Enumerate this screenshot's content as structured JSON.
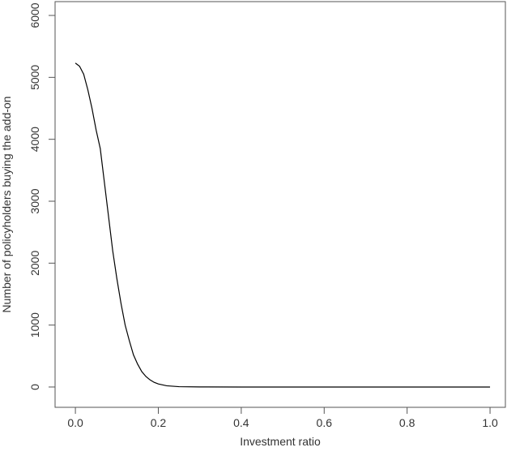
{
  "chart_data": {
    "type": "line",
    "x_label": "Investment ratio",
    "y_label": "Number of policyholders buying the add-on",
    "series": [
      {
        "color": "#000000",
        "x": [
          0.0,
          0.01,
          0.02,
          0.03,
          0.04,
          0.05,
          0.06,
          0.07,
          0.08,
          0.09,
          0.1,
          0.11,
          0.12,
          0.13,
          0.14,
          0.15,
          0.16,
          0.17,
          0.18,
          0.19,
          0.2,
          0.22,
          0.25,
          0.3,
          0.4,
          0.6,
          0.8,
          1.0
        ],
        "values": [
          5230,
          5180,
          5050,
          4800,
          4500,
          4150,
          3850,
          3300,
          2750,
          2200,
          1750,
          1350,
          1000,
          750,
          520,
          370,
          250,
          170,
          115,
          75,
          50,
          20,
          5,
          1,
          0,
          0,
          0,
          0
        ]
      }
    ],
    "xlim": [
      -0.049,
      1.037
    ],
    "ylim": [
      -328,
      6223
    ],
    "xticks": [
      {
        "value": 0,
        "label": "0.0"
      },
      0.2,
      0.4,
      0.6,
      0.8,
      {
        "value": 1,
        "label": "1.0"
      }
    ],
    "yticks": [
      0,
      1000,
      2000,
      3000,
      4000,
      5000,
      6000
    ]
  }
}
